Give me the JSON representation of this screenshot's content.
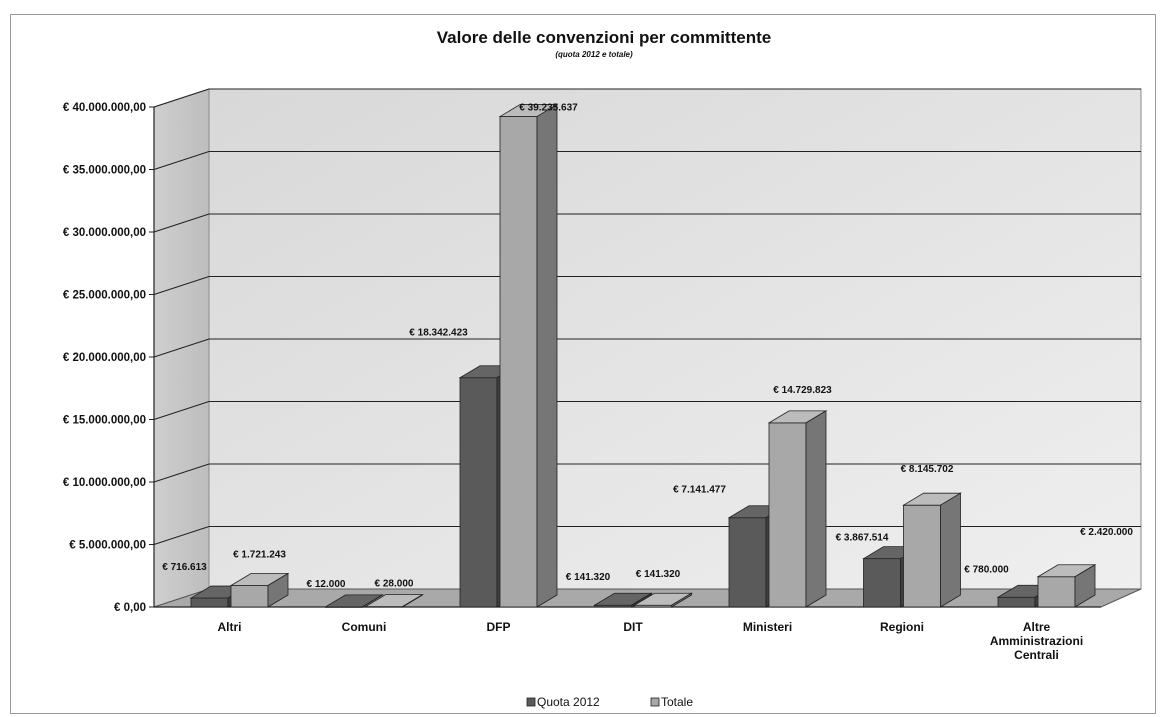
{
  "chart_data": {
    "type": "bar",
    "title": "Valore delle convenzioni per committente",
    "subtitle": "(quota 2012 e totale)",
    "xlabel": "",
    "ylabel": "",
    "ylim": [
      0,
      40000000
    ],
    "yticks": [
      "€ 0,00",
      "€ 5.000.000,00",
      "€ 10.000.000,00",
      "€ 15.000.000,00",
      "€ 20.000.000,00",
      "€ 25.000.000,00",
      "€ 30.000.000,00",
      "€ 35.000.000,00",
      "€ 40.000.000,00"
    ],
    "categories": [
      [
        "Altri"
      ],
      [
        "Comuni"
      ],
      [
        "DFP"
      ],
      [
        "DIT"
      ],
      [
        "Ministeri"
      ],
      [
        "Regioni"
      ],
      [
        "Altre",
        "Amministrazioni",
        "Centrali"
      ]
    ],
    "series": [
      {
        "name": "Quota 2012",
        "color": "#5a5a5a",
        "values": [
          716613,
          12000,
          18342423,
          141320,
          7141477,
          3867514,
          780000
        ],
        "labels": [
          "€ 716.613",
          "€ 12.000",
          "€ 18.342.423",
          "€ 141.320",
          "€ 7.141.477",
          "€ 3.867.514",
          "€ 780.000"
        ]
      },
      {
        "name": "Totale",
        "color": "#a8a8a8",
        "values": [
          1721243,
          28000,
          39235637,
          141320,
          14729823,
          8145702,
          2420000
        ],
        "labels": [
          "€ 1.721.243",
          "€ 28.000",
          "€ 39.235.637",
          "€ 141.320",
          "€ 14.729.823",
          "€ 8.145.702",
          "€ 2.420.000"
        ]
      }
    ],
    "grid": true,
    "legend": "bottom",
    "style": "3d-clustered-column"
  }
}
